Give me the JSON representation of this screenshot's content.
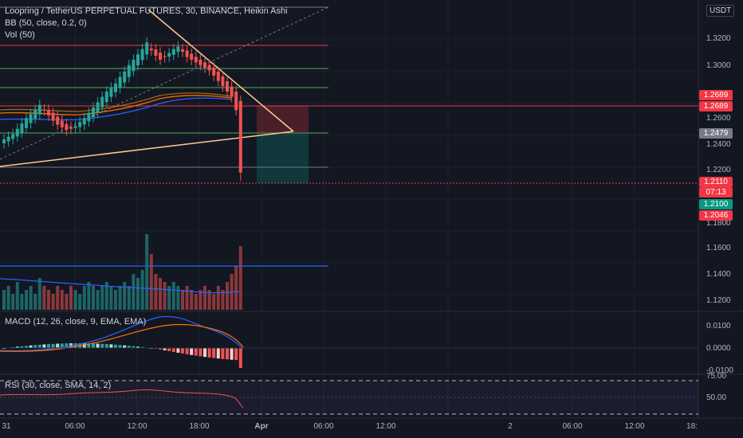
{
  "header": {
    "title": "Loopring / TetherUS PERPETUAL FUTURES, 30, BINANCE, Heikin Ashi",
    "bb": "BB (50, close, 0.2, 0)",
    "vol": "Vol (50)"
  },
  "currency": "USDT",
  "price_axis": [
    {
      "label": "1.3200",
      "v": 1.32
    },
    {
      "label": "1.3000",
      "v": 1.3
    },
    {
      "label": "1.2600",
      "v": 1.26
    },
    {
      "label": "1.2400",
      "v": 1.24
    },
    {
      "label": "1.2200",
      "v": 1.22
    },
    {
      "label": "1.1800",
      "v": 1.18
    },
    {
      "label": "1.1600",
      "v": 1.16
    },
    {
      "label": "1.1400",
      "v": 1.14
    },
    {
      "label": "1.1200",
      "v": 1.12
    }
  ],
  "price_tags": {
    "sl_top": "1.2689",
    "sl_bottom": "1.2689",
    "entry": "1.2479",
    "last": "1.2110",
    "countdown": "07:13",
    "target": "1.2100",
    "low": "1.2046"
  },
  "colors": {
    "up": "#26a69a",
    "down": "#ef5350",
    "bg": "#131722",
    "line_red": "#f23645",
    "line_green": "#4caf50",
    "trend": "#ffc890",
    "vol_line": "#2962ff"
  },
  "macd": {
    "title": "MACD (12, 26, close, 9, EMA, EMA)",
    "axis": [
      "0.0100",
      "0.0000",
      "-0.0100"
    ]
  },
  "rsi": {
    "title": "RSI (30, close, SMA, 14, 2)",
    "axis": [
      "75.00",
      "50.00"
    ]
  },
  "time_axis": [
    "31",
    "06:00",
    "12:00",
    "18:00",
    "Apr",
    "06:00",
    "12:00",
    "2",
    "06:00",
    "12:00",
    "18:"
  ],
  "chart_data": {
    "type": "candlestick",
    "ohlc_sequence_note": "",
    "closes_approx": [
      1.236,
      1.238,
      1.24,
      1.244,
      1.248,
      1.252,
      1.255,
      1.258,
      1.262,
      1.258,
      1.254,
      1.25,
      1.247,
      1.245,
      1.243,
      1.244,
      1.246,
      1.249,
      1.252,
      1.256,
      1.26,
      1.264,
      1.268,
      1.272,
      1.275,
      1.278,
      1.283,
      1.287,
      1.292,
      1.296,
      1.3,
      1.304,
      1.309,
      1.303,
      1.299,
      1.296,
      1.298,
      1.301,
      1.304,
      1.306,
      1.302,
      1.298,
      1.296,
      1.294,
      1.292,
      1.29,
      1.288,
      1.284,
      1.28,
      1.276,
      1.272,
      1.268,
      1.258,
      1.211
    ],
    "volume_rel": [
      0.25,
      0.3,
      0.2,
      0.35,
      0.2,
      0.25,
      0.3,
      0.2,
      0.4,
      0.3,
      0.25,
      0.2,
      0.3,
      0.25,
      0.2,
      0.3,
      0.25,
      0.2,
      0.3,
      0.35,
      0.3,
      0.25,
      0.3,
      0.35,
      0.3,
      0.25,
      0.3,
      0.35,
      0.3,
      0.45,
      0.4,
      0.5,
      0.95,
      0.7,
      0.45,
      0.4,
      0.35,
      0.3,
      0.35,
      0.3,
      0.25,
      0.3,
      0.25,
      0.2,
      0.25,
      0.3,
      0.25,
      0.2,
      0.3,
      0.25,
      0.35,
      0.45,
      0.55,
      0.8
    ]
  }
}
